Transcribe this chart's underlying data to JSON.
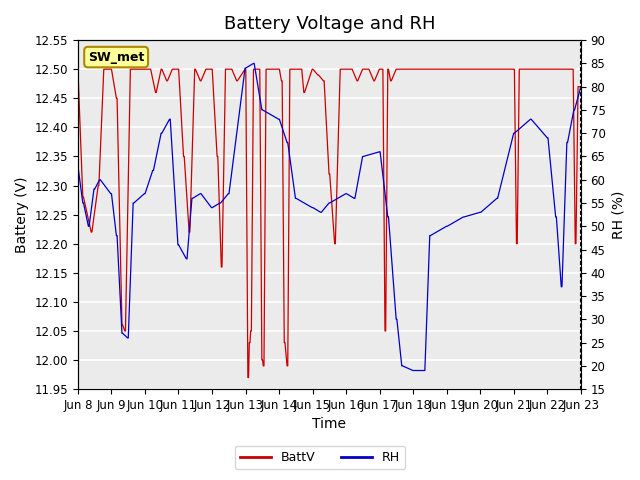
{
  "title": "Battery Voltage and RH",
  "xlabel": "Time",
  "ylabel_left": "Battery (V)",
  "ylabel_right": "RH (%)",
  "ylim_left": [
    11.95,
    12.55
  ],
  "ylim_right": [
    15,
    90
  ],
  "yticks_left": [
    11.95,
    12.0,
    12.05,
    12.1,
    12.15,
    12.2,
    12.25,
    12.3,
    12.35,
    12.4,
    12.45,
    12.5,
    12.55
  ],
  "yticks_right": [
    15,
    20,
    25,
    30,
    35,
    40,
    45,
    50,
    55,
    60,
    65,
    70,
    75,
    80,
    85,
    90
  ],
  "xtick_labels": [
    "Jun 8",
    "Jun 9",
    "Jun 10",
    "Jun 11",
    "Jun 12",
    "Jun 13",
    "Jun 14",
    "Jun 15",
    "Jun 16",
    "Jun 17",
    "Jun 18",
    "Jun 19",
    "Jun 20",
    "Jun 21",
    "Jun 22",
    "Jun 23"
  ],
  "batt_color": "#CC0000",
  "rh_color": "#0000CC",
  "plot_bg_color": "#EBEBEB",
  "legend_label_batt": "BattV",
  "legend_label_rh": "RH",
  "station_label": "SW_met",
  "title_fontsize": 13,
  "axis_fontsize": 10,
  "tick_fontsize": 8.5
}
